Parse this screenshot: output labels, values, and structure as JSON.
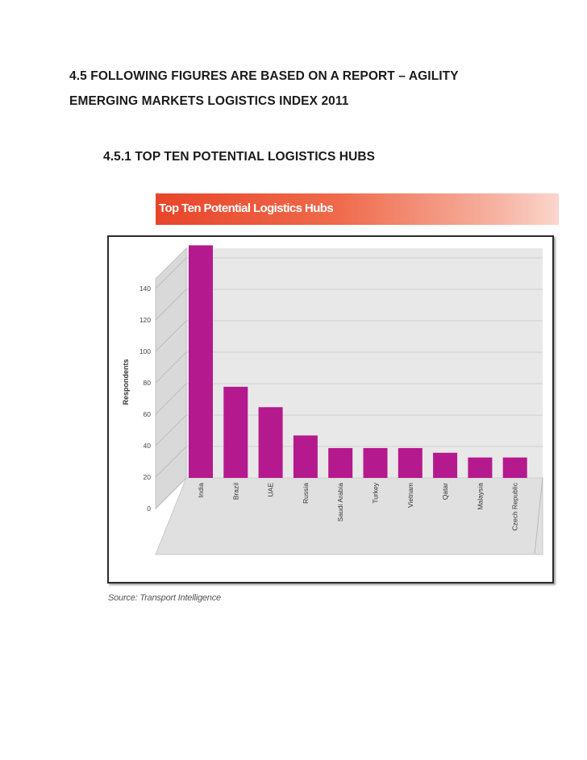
{
  "document": {
    "heading_line1": "4.5 FOLLOWING FIGURES ARE BASED ON A REPORT – AGILITY",
    "heading_line2": "EMERGING MARKETS LOGISTICS INDEX 2011",
    "subheading": "4.5.1 TOP TEN POTENTIAL LOGISTICS HUBS",
    "source": "Source: Transport Intelligence"
  },
  "colors": {
    "bar": "#b5198e",
    "banner_start": "#e8452a",
    "banner_end": "#fbd6cc"
  },
  "chart_data": {
    "type": "bar",
    "title": "Top Ten Potential Logistics Hubs",
    "ylabel": "Respondents",
    "xlabel": "",
    "categories": [
      "India",
      "Brazil",
      "UAE",
      "Russia",
      "Saudi Arabia",
      "Turkey",
      "Vietnam",
      "Qatar",
      "Malaysia",
      "Czech Republic"
    ],
    "values": [
      148,
      58,
      45,
      27,
      19,
      19,
      19,
      16,
      13,
      13
    ],
    "ylim": [
      0,
      140
    ],
    "yticks": [
      0,
      20,
      40,
      60,
      80,
      100,
      120,
      140
    ],
    "grid": true,
    "perspective_3d": true
  }
}
